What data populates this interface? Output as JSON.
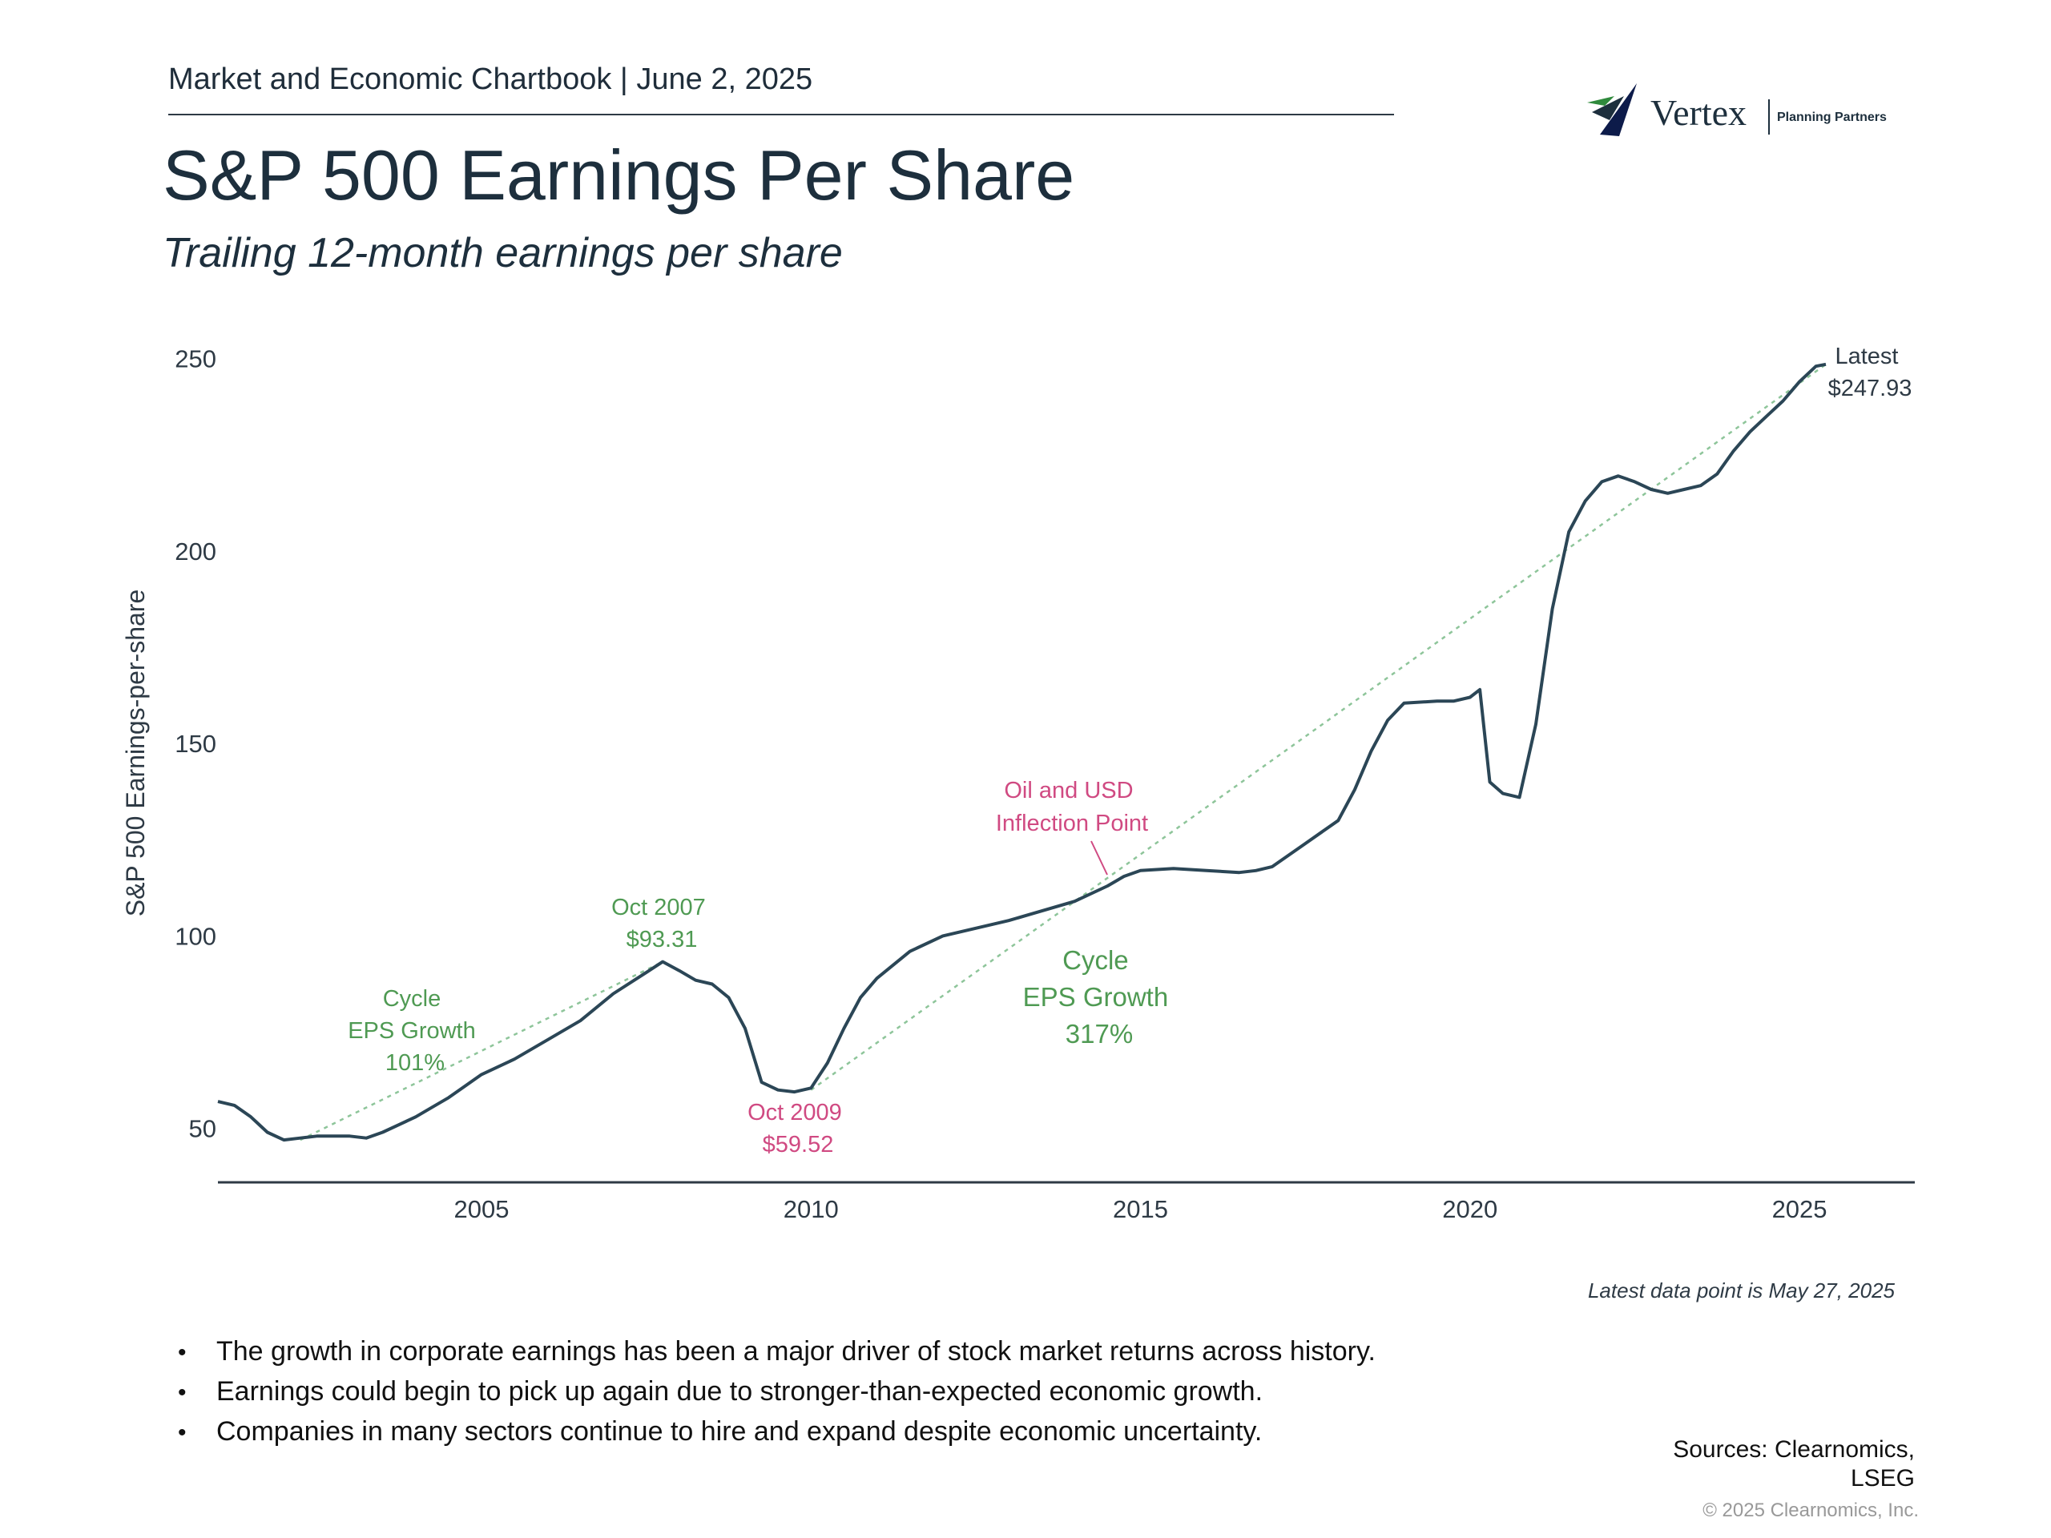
{
  "header": {
    "chartbook": "Market and Economic Chartbook | June 2, 2025",
    "title": "S&P 500 Earnings Per Share",
    "subtitle": "Trailing 12-month earnings per share"
  },
  "logo": {
    "name": "Vertex",
    "tagline": "Planning Partners",
    "colors": [
      "#2f8a3c",
      "#1d2f3d",
      "#0d1b4a"
    ]
  },
  "chart_data": {
    "type": "line",
    "ylabel": "S&P 500 Earnings-per-share",
    "xlabel": "",
    "xlim": [
      2001.0,
      2026.75
    ],
    "ylim": [
      36,
      252
    ],
    "xticks": [
      {
        "value": 2005,
        "label": "2005"
      },
      {
        "value": 2010,
        "label": "2010"
      },
      {
        "value": 2015,
        "label": "2015"
      },
      {
        "value": 2020,
        "label": "2020"
      },
      {
        "value": 2025,
        "label": "2025"
      }
    ],
    "yticks": [
      {
        "value": 50,
        "label": "50"
      },
      {
        "value": 100,
        "label": "100"
      },
      {
        "value": 150,
        "label": "150"
      },
      {
        "value": 200,
        "label": "200"
      },
      {
        "value": 250,
        "label": "250"
      }
    ],
    "grid": false,
    "colors": {
      "line": "#2b4656",
      "trend": "#8ec59a",
      "green_text": "#4f9a53",
      "pink_text": "#d04a82",
      "axis": "#2e3a45"
    },
    "series": [
      {
        "x": [
          2001.0,
          2001.25,
          2001.5,
          2001.75,
          2002.0,
          2002.25,
          2002.5,
          2002.75,
          2003.0,
          2003.25,
          2003.5,
          2003.75,
          2004.0,
          2004.25,
          2004.5,
          2004.75,
          2005.0,
          2005.5,
          2006.0,
          2006.5,
          2007.0,
          2007.5,
          2007.75,
          2008.0,
          2008.25,
          2008.5,
          2008.75,
          2009.0,
          2009.25,
          2009.5,
          2009.75,
          2010.0,
          2010.25,
          2010.5,
          2010.75,
          2011.0,
          2011.5,
          2012.0,
          2012.5,
          2013.0,
          2013.5,
          2014.0,
          2014.5,
          2014.75,
          2015.0,
          2015.5,
          2016.0,
          2016.5,
          2016.75,
          2017.0,
          2017.5,
          2018.0,
          2018.25,
          2018.5,
          2018.75,
          2019.0,
          2019.5,
          2019.75,
          2020.0,
          2020.15,
          2020.3,
          2020.5,
          2020.75,
          2021.0,
          2021.25,
          2021.5,
          2021.75,
          2022.0,
          2022.25,
          2022.5,
          2022.75,
          2023.0,
          2023.25,
          2023.5,
          2023.75,
          2024.0,
          2024.25,
          2024.5,
          2024.75,
          2025.0,
          2025.25,
          2025.4
        ],
        "values": [
          57,
          56,
          53,
          49,
          47,
          47.5,
          48,
          48,
          48,
          47.5,
          49,
          51,
          53,
          55.5,
          58,
          61,
          64,
          68,
          73,
          78,
          85,
          90.5,
          93.3,
          91,
          88.5,
          87.5,
          84,
          76,
          62,
          60,
          59.5,
          60.5,
          67,
          76,
          84,
          89,
          96,
          100,
          102,
          104,
          106.5,
          109,
          113,
          115.5,
          117,
          117.5,
          117,
          116.5,
          117,
          118,
          124,
          130,
          138,
          148,
          156,
          160.5,
          161,
          161,
          162,
          164,
          140,
          137,
          136,
          155,
          185,
          205,
          213,
          218,
          219.5,
          218,
          216,
          215,
          216,
          217,
          220,
          226,
          231,
          235,
          239,
          244,
          248,
          248.5
        ],
        "trend_segments": [
          {
            "x": [
              2002.25,
              2007.75
            ],
            "values": [
              47,
              93.3
            ]
          },
          {
            "x": [
              2010.0,
              2025.4
            ],
            "values": [
              60,
              248.5
            ]
          }
        ]
      }
    ],
    "annotations": [
      {
        "id": "oct2007",
        "lines": [
          "Oct 2007",
          "$93.31"
        ],
        "color": "green"
      },
      {
        "id": "oct2009",
        "lines": [
          "Oct 2009",
          "$59.52"
        ],
        "color": "pink"
      },
      {
        "id": "cycle1",
        "lines": [
          "Cycle",
          "EPS Growth",
          "101%"
        ],
        "color": "green"
      },
      {
        "id": "cycle2",
        "lines": [
          "Cycle",
          "EPS Growth",
          "317%"
        ],
        "color": "green"
      },
      {
        "id": "inflection",
        "lines": [
          "Oil and USD",
          "Inflection Point"
        ],
        "color": "pink"
      },
      {
        "id": "latest",
        "lines": [
          "Latest",
          "$247.93"
        ],
        "color": "dark"
      }
    ]
  },
  "footer": {
    "note": "Latest data point is May 27, 2025",
    "bullets": [
      "The growth in corporate earnings has been a major driver of stock market returns across history.",
      "Earnings could begin to pick up again due to stronger-than-expected economic growth.",
      "Companies in many sectors continue to hire and expand despite economic uncertainty."
    ],
    "bullet_glyph": "•",
    "sources": [
      "Sources: Clearnomics,",
      "LSEG"
    ],
    "copyright": "© 2025 Clearnomics, Inc."
  }
}
